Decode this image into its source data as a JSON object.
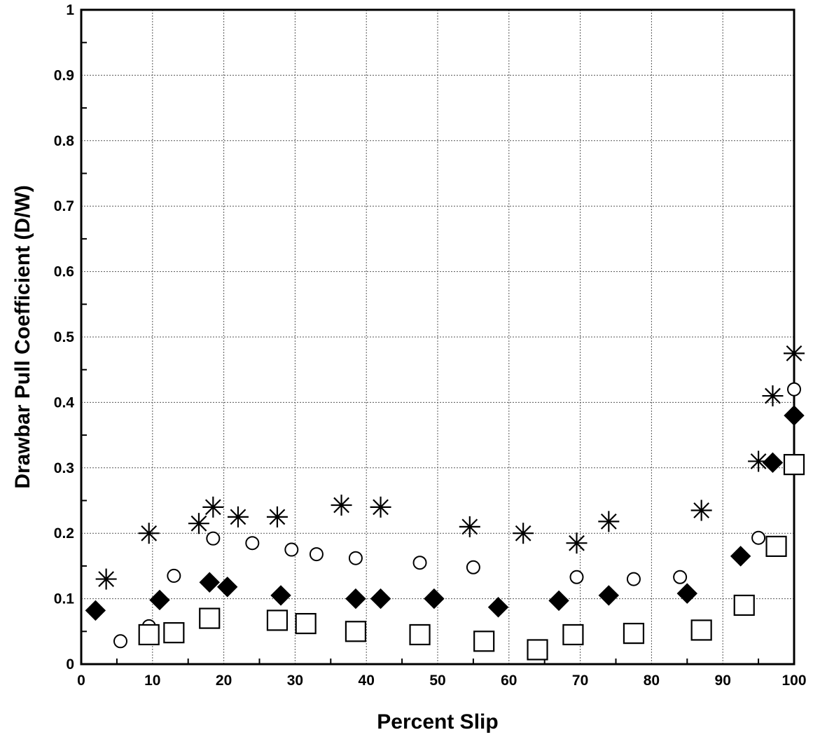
{
  "chart_data": {
    "type": "scatter",
    "title": "",
    "xlabel": "Percent Slip",
    "ylabel": "Drawbar Pull Coefficient (D/W)",
    "xlim": [
      0,
      100
    ],
    "ylim": [
      0,
      1
    ],
    "grid": true,
    "x_ticks": [
      "0",
      "10",
      "20",
      "30",
      "40",
      "50",
      "60",
      "70",
      "80",
      "90",
      "100"
    ],
    "y_ticks": [
      "0",
      "0.1",
      "0.2",
      "0.3",
      "0.4",
      "0.5",
      "0.6",
      "0.7",
      "0.8",
      "0.9",
      "1"
    ],
    "series": [
      {
        "marker": "asterisk",
        "x": [
          3.5,
          9.5,
          16.5,
          18.5,
          22,
          27.5,
          36.5,
          42,
          54.5,
          62,
          69.5,
          74,
          87,
          95,
          97,
          100
        ],
        "y": [
          0.13,
          0.2,
          0.215,
          0.24,
          0.225,
          0.225,
          0.243,
          0.24,
          0.21,
          0.2,
          0.185,
          0.218,
          0.235,
          0.31,
          0.41,
          0.475
        ]
      },
      {
        "marker": "open-circle",
        "x": [
          5.5,
          9.5,
          13,
          18.5,
          24,
          29.5,
          33,
          38.5,
          47.5,
          55,
          69.5,
          77.5,
          84,
          95,
          100
        ],
        "y": [
          0.035,
          0.058,
          0.135,
          0.192,
          0.185,
          0.175,
          0.168,
          0.162,
          0.155,
          0.148,
          0.133,
          0.13,
          0.133,
          0.193,
          0.42
        ]
      },
      {
        "marker": "filled-diamond",
        "x": [
          2,
          11,
          18,
          20.5,
          28,
          38.5,
          42,
          49.5,
          58.5,
          67,
          74,
          85,
          92.5,
          97,
          100
        ],
        "y": [
          0.082,
          0.098,
          0.125,
          0.118,
          0.105,
          0.1,
          0.1,
          0.1,
          0.087,
          0.097,
          0.105,
          0.108,
          0.165,
          0.308,
          0.38
        ]
      },
      {
        "marker": "open-square",
        "x": [
          9.5,
          13,
          18,
          27.5,
          31.5,
          38.5,
          47.5,
          56.5,
          64,
          69,
          77.5,
          87,
          93,
          97.5,
          100
        ],
        "y": [
          0.045,
          0.048,
          0.07,
          0.067,
          0.062,
          0.05,
          0.045,
          0.035,
          0.022,
          0.045,
          0.047,
          0.052,
          0.09,
          0.18,
          0.305
        ]
      }
    ]
  }
}
